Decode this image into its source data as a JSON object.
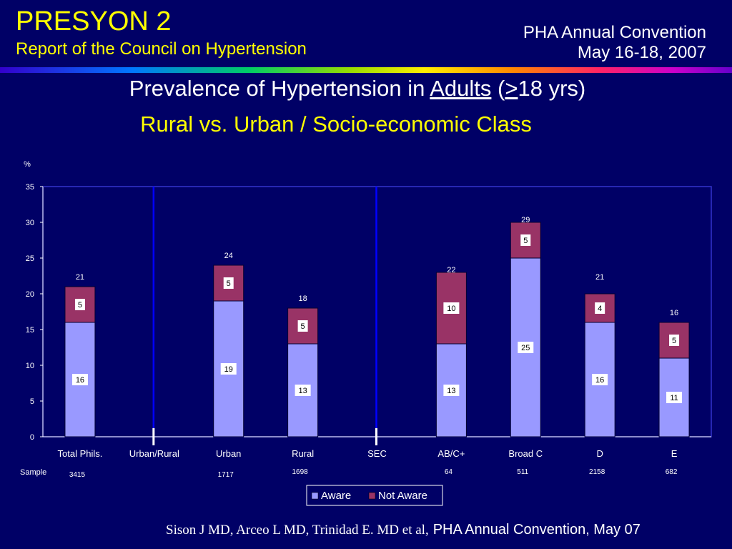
{
  "header": {
    "brand_title": "PRESYON 2",
    "brand_subtitle": "Report of the Council on Hypertension",
    "conference_line1": "PHA Annual Convention",
    "conference_line2": "May 16-18, 2007"
  },
  "slide": {
    "title_prefix": "Prevalence of Hypertension in ",
    "title_underlined": "Adults",
    "title_open": " (",
    "title_symbol": ">",
    "title_suffix": "18 yrs)",
    "subtitle": "Rural vs. Urban / Socio-economic Class"
  },
  "chart_data": {
    "type": "bar",
    "stacked": true,
    "y_unit_label": "%",
    "ylim": [
      0,
      35
    ],
    "yticks": [
      0,
      5,
      10,
      15,
      20,
      25,
      30,
      35
    ],
    "categories": [
      "Total Phils.",
      "Urban/Rural",
      "Urban",
      "Rural",
      "SEC",
      "AB/C+",
      "Broad C",
      "D",
      "E"
    ],
    "section_dividers": [
      "Urban/Rural",
      "SEC"
    ],
    "series": [
      {
        "name": "Aware",
        "color": "#9999ff",
        "values": [
          16,
          null,
          19,
          13,
          null,
          13,
          25,
          16,
          11
        ]
      },
      {
        "name": "Not Aware",
        "color": "#993366",
        "values": [
          5,
          null,
          5,
          5,
          null,
          10,
          5,
          4,
          5
        ]
      }
    ],
    "totals": [
      21,
      null,
      24,
      18,
      null,
      22,
      29,
      21,
      16
    ],
    "sample_label": "Sample",
    "samples": [
      "3415",
      null,
      "1717",
      "1698",
      null,
      "64",
      "511",
      "2158",
      "682"
    ],
    "legend": [
      "Aware",
      "Not Aware"
    ],
    "legend_position": "bottom"
  },
  "footer": {
    "authors": "Sison J MD, Arceo L MD, Trinidad E. MD et al,",
    "conference": "PHA Annual Convention, May 07"
  }
}
